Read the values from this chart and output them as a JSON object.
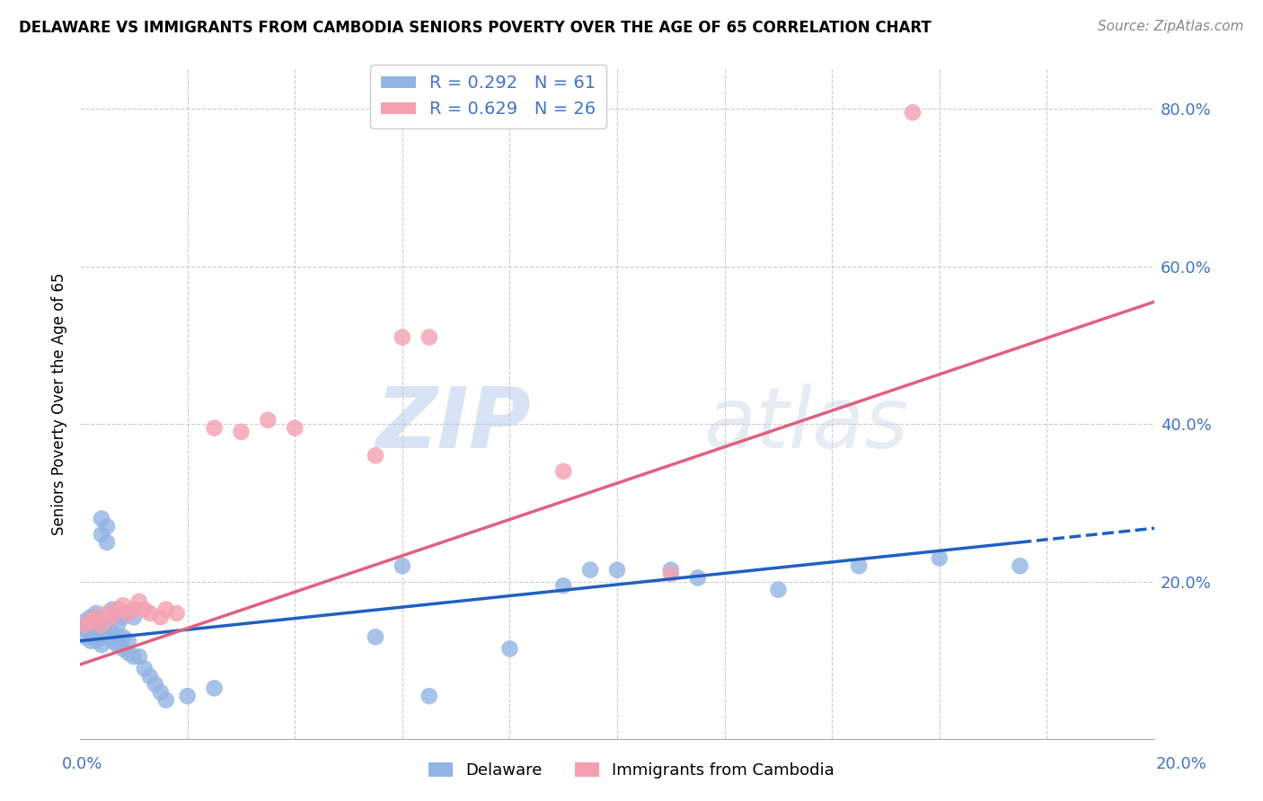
{
  "title": "DELAWARE VS IMMIGRANTS FROM CAMBODIA SENIORS POVERTY OVER THE AGE OF 65 CORRELATION CHART",
  "source": "Source: ZipAtlas.com",
  "ylabel": "Seniors Poverty Over the Age of 65",
  "legend_label1": "Delaware",
  "legend_label2": "Immigrants from Cambodia",
  "R1": 0.292,
  "N1": 61,
  "R2": 0.629,
  "N2": 26,
  "blue_color": "#92b4e3",
  "pink_color": "#f4a0b0",
  "blue_line_color": "#2060c0",
  "pink_line_color": "#e06080",
  "watermark": "ZIPatlas",
  "watermark_color": "#c8d8f0",
  "xlim": [
    0.0,
    0.2
  ],
  "ylim": [
    0.0,
    0.85
  ],
  "right_yticks": [
    0.0,
    0.2,
    0.4,
    0.6,
    0.8
  ],
  "right_yticklabels": [
    "",
    "20.0%",
    "40.0%",
    "60.0%",
    "80.0%"
  ],
  "blue_scatter_x": [
    0.001,
    0.001,
    0.001,
    0.001,
    0.002,
    0.002,
    0.002,
    0.002,
    0.002,
    0.002,
    0.003,
    0.003,
    0.003,
    0.003,
    0.003,
    0.003,
    0.003,
    0.004,
    0.004,
    0.004,
    0.004,
    0.004,
    0.005,
    0.005,
    0.005,
    0.005,
    0.006,
    0.006,
    0.006,
    0.006,
    0.007,
    0.007,
    0.007,
    0.008,
    0.008,
    0.008,
    0.009,
    0.009,
    0.01,
    0.01,
    0.011,
    0.012,
    0.013,
    0.014,
    0.015,
    0.016,
    0.02,
    0.025,
    0.055,
    0.065,
    0.08,
    0.09,
    0.1,
    0.115,
    0.13,
    0.145,
    0.16,
    0.175,
    0.06,
    0.095,
    0.11
  ],
  "blue_scatter_y": [
    0.13,
    0.14,
    0.145,
    0.15,
    0.125,
    0.135,
    0.14,
    0.145,
    0.15,
    0.155,
    0.125,
    0.13,
    0.14,
    0.145,
    0.15,
    0.155,
    0.16,
    0.12,
    0.13,
    0.14,
    0.28,
    0.26,
    0.13,
    0.14,
    0.27,
    0.25,
    0.125,
    0.135,
    0.155,
    0.165,
    0.12,
    0.13,
    0.145,
    0.115,
    0.13,
    0.155,
    0.11,
    0.125,
    0.105,
    0.155,
    0.105,
    0.09,
    0.08,
    0.07,
    0.06,
    0.05,
    0.055,
    0.065,
    0.13,
    0.055,
    0.115,
    0.195,
    0.215,
    0.205,
    0.19,
    0.22,
    0.23,
    0.22,
    0.22,
    0.215,
    0.215
  ],
  "pink_scatter_x": [
    0.001,
    0.002,
    0.003,
    0.004,
    0.005,
    0.006,
    0.007,
    0.008,
    0.009,
    0.01,
    0.011,
    0.012,
    0.013,
    0.015,
    0.016,
    0.018,
    0.025,
    0.03,
    0.035,
    0.04,
    0.055,
    0.06,
    0.065,
    0.09,
    0.11,
    0.155
  ],
  "pink_scatter_y": [
    0.145,
    0.15,
    0.155,
    0.145,
    0.16,
    0.155,
    0.165,
    0.17,
    0.16,
    0.165,
    0.175,
    0.165,
    0.16,
    0.155,
    0.165,
    0.16,
    0.395,
    0.39,
    0.405,
    0.395,
    0.36,
    0.51,
    0.51,
    0.34,
    0.21,
    0.795
  ],
  "blue_line_x0": 0.0,
  "blue_line_x1": 0.175,
  "blue_line_x_dash_end": 0.2,
  "blue_line_y0": 0.125,
  "blue_line_y1": 0.25,
  "pink_line_x0": 0.0,
  "pink_line_x1": 0.2,
  "pink_line_y0": 0.095,
  "pink_line_y1": 0.555
}
